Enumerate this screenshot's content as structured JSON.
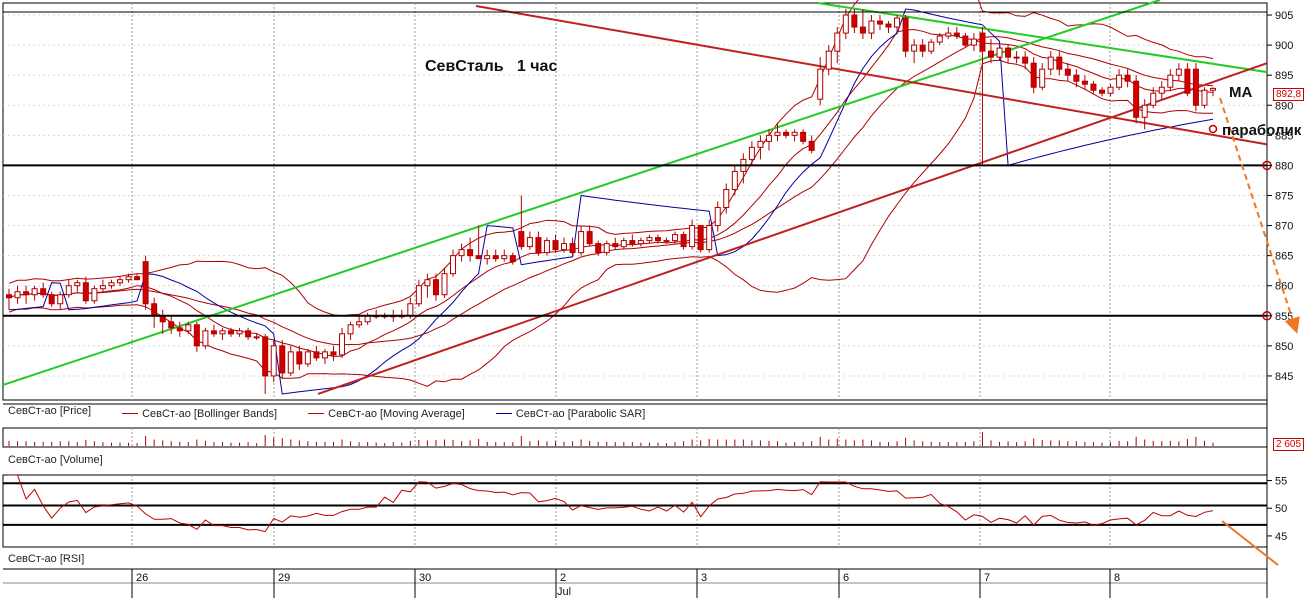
{
  "chart_data": {
    "type": "candlestick",
    "title": "СевСталь   1 час",
    "price_axis": {
      "ylim": [
        841,
        907
      ],
      "ticks": [
        845,
        850,
        855,
        860,
        865,
        870,
        875,
        880,
        885,
        890,
        895,
        900,
        905
      ]
    },
    "last_price": "892,8",
    "x_ticks": [
      "26",
      "29",
      "30",
      "2",
      "3",
      "6",
      "7",
      "8"
    ],
    "month_label": "Jul",
    "legend": [
      {
        "label": "СевСт-ао [Price]",
        "color": "#c00000"
      },
      {
        "label": "СевСт-ао [Bollinger Bands]",
        "color": "#c00000"
      },
      {
        "label": "СевСт-ао [Moving Average]",
        "color": "#c00000"
      },
      {
        "label": "СевСт-ао [Parabolic SAR]",
        "color": "#0000a0"
      }
    ],
    "horizontal_levels": [
      880,
      855,
      905.5
    ],
    "annotations": {
      "ma": "МА",
      "parabolic": "параболик"
    },
    "volume_panel": {
      "label": "СевСт-ао [Volume]",
      "last_value": "2 605"
    },
    "rsi_panel": {
      "label": "СевСт-ао [RSI]",
      "ticks": [
        45,
        50,
        55
      ],
      "levels": [
        54.5,
        50.5,
        47
      ]
    },
    "candles": [
      {
        "o": 858.5,
        "h": 859.5,
        "l": 856,
        "c": 858
      },
      {
        "o": 858,
        "h": 860,
        "l": 857,
        "c": 859
      },
      {
        "o": 859,
        "h": 860,
        "l": 857,
        "c": 858.5
      },
      {
        "o": 858.5,
        "h": 860,
        "l": 857.5,
        "c": 859.5
      },
      {
        "o": 859.5,
        "h": 860.5,
        "l": 858,
        "c": 858.5
      },
      {
        "o": 858.5,
        "h": 859,
        "l": 856.5,
        "c": 857
      },
      {
        "o": 857,
        "h": 859,
        "l": 856,
        "c": 858.5
      },
      {
        "o": 858.5,
        "h": 861,
        "l": 858,
        "c": 860
      },
      {
        "o": 860,
        "h": 861,
        "l": 859,
        "c": 860.5
      },
      {
        "o": 860.5,
        "h": 861.5,
        "l": 857,
        "c": 857.5
      },
      {
        "o": 857.5,
        "h": 860,
        "l": 857,
        "c": 859.5
      },
      {
        "o": 859.5,
        "h": 861,
        "l": 859,
        "c": 860
      },
      {
        "o": 860,
        "h": 861,
        "l": 859.5,
        "c": 860.5
      },
      {
        "o": 860.5,
        "h": 861.5,
        "l": 860,
        "c": 861
      },
      {
        "o": 861,
        "h": 862,
        "l": 860.5,
        "c": 861.5
      },
      {
        "o": 861.5,
        "h": 862,
        "l": 861,
        "c": 861
      },
      {
        "o": 864,
        "h": 865,
        "l": 856,
        "c": 857
      },
      {
        "o": 857,
        "h": 858,
        "l": 853,
        "c": 855
      },
      {
        "o": 855,
        "h": 856,
        "l": 852,
        "c": 854
      },
      {
        "o": 854,
        "h": 855,
        "l": 852,
        "c": 853
      },
      {
        "o": 853,
        "h": 854,
        "l": 851.5,
        "c": 852.5
      },
      {
        "o": 852.5,
        "h": 854,
        "l": 852,
        "c": 853.5
      },
      {
        "o": 853.5,
        "h": 854,
        "l": 849,
        "c": 850
      },
      {
        "o": 850,
        "h": 853,
        "l": 849.5,
        "c": 852.5
      },
      {
        "o": 852.5,
        "h": 853.5,
        "l": 851.5,
        "c": 852
      },
      {
        "o": 852,
        "h": 853,
        "l": 851,
        "c": 852.5
      },
      {
        "o": 852.5,
        "h": 853,
        "l": 851.5,
        "c": 852
      },
      {
        "o": 852,
        "h": 853,
        "l": 851.5,
        "c": 852.5
      },
      {
        "o": 852.5,
        "h": 853,
        "l": 851,
        "c": 851.5
      },
      {
        "o": 851.5,
        "h": 852,
        "l": 851,
        "c": 851.5
      },
      {
        "o": 851.5,
        "h": 852,
        "l": 842,
        "c": 845
      },
      {
        "o": 845,
        "h": 851,
        "l": 844,
        "c": 850
      },
      {
        "o": 850,
        "h": 851,
        "l": 844.5,
        "c": 845.5
      },
      {
        "o": 845.5,
        "h": 850,
        "l": 845,
        "c": 849
      },
      {
        "o": 849,
        "h": 850,
        "l": 846,
        "c": 847
      },
      {
        "o": 847,
        "h": 849.5,
        "l": 846.5,
        "c": 849
      },
      {
        "o": 849,
        "h": 850,
        "l": 847.5,
        "c": 848
      },
      {
        "o": 848,
        "h": 849.5,
        "l": 847,
        "c": 849
      },
      {
        "o": 849,
        "h": 850,
        "l": 847.5,
        "c": 848.5
      },
      {
        "o": 848.5,
        "h": 853,
        "l": 848,
        "c": 852
      },
      {
        "o": 852,
        "h": 854,
        "l": 851,
        "c": 853.5
      },
      {
        "o": 853.5,
        "h": 855,
        "l": 853,
        "c": 854
      },
      {
        "o": 854,
        "h": 855.5,
        "l": 853.5,
        "c": 855
      },
      {
        "o": 855,
        "h": 856,
        "l": 854.5,
        "c": 855
      },
      {
        "o": 855,
        "h": 855.5,
        "l": 854.5,
        "c": 855
      },
      {
        "o": 855,
        "h": 856,
        "l": 854,
        "c": 855
      },
      {
        "o": 855,
        "h": 856,
        "l": 854.5,
        "c": 855
      },
      {
        "o": 855,
        "h": 858,
        "l": 854.5,
        "c": 857
      },
      {
        "o": 857,
        "h": 861,
        "l": 856.5,
        "c": 860
      },
      {
        "o": 860,
        "h": 862,
        "l": 858,
        "c": 861
      },
      {
        "o": 861,
        "h": 862,
        "l": 857.5,
        "c": 858.5
      },
      {
        "o": 858.5,
        "h": 863,
        "l": 858,
        "c": 862
      },
      {
        "o": 862,
        "h": 866,
        "l": 861.5,
        "c": 865
      },
      {
        "o": 865,
        "h": 867,
        "l": 864,
        "c": 866
      },
      {
        "o": 866,
        "h": 868,
        "l": 864,
        "c": 865
      },
      {
        "o": 865,
        "h": 870,
        "l": 864.5,
        "c": 864.5
      },
      {
        "o": 864.5,
        "h": 866,
        "l": 863.5,
        "c": 865
      },
      {
        "o": 865,
        "h": 866,
        "l": 864,
        "c": 864.5
      },
      {
        "o": 864.5,
        "h": 866,
        "l": 864,
        "c": 865
      },
      {
        "o": 865,
        "h": 865.5,
        "l": 863.5,
        "c": 864
      },
      {
        "o": 869,
        "h": 875,
        "l": 866,
        "c": 866.5
      },
      {
        "o": 866.5,
        "h": 869,
        "l": 866,
        "c": 868
      },
      {
        "o": 868,
        "h": 869,
        "l": 865,
        "c": 865.5
      },
      {
        "o": 865.5,
        "h": 868,
        "l": 865,
        "c": 867.5
      },
      {
        "o": 867.5,
        "h": 868.5,
        "l": 865.5,
        "c": 866
      },
      {
        "o": 866,
        "h": 868,
        "l": 865.5,
        "c": 867
      },
      {
        "o": 867,
        "h": 868,
        "l": 865,
        "c": 865.5
      },
      {
        "o": 865.5,
        "h": 870,
        "l": 865,
        "c": 869
      },
      {
        "o": 869,
        "h": 870,
        "l": 866.5,
        "c": 867
      },
      {
        "o": 867,
        "h": 867.5,
        "l": 865,
        "c": 865.5
      },
      {
        "o": 865.5,
        "h": 867.5,
        "l": 865,
        "c": 867
      },
      {
        "o": 867,
        "h": 868,
        "l": 866,
        "c": 866.5
      },
      {
        "o": 866.5,
        "h": 868,
        "l": 866,
        "c": 867.5
      },
      {
        "o": 867.5,
        "h": 868.5,
        "l": 866.5,
        "c": 867
      },
      {
        "o": 867,
        "h": 868,
        "l": 866.5,
        "c": 867.5
      },
      {
        "o": 867.5,
        "h": 868.5,
        "l": 867,
        "c": 868
      },
      {
        "o": 868,
        "h": 868.5,
        "l": 867,
        "c": 867.5
      },
      {
        "o": 867.5,
        "h": 868,
        "l": 867,
        "c": 867.5
      },
      {
        "o": 867.5,
        "h": 869,
        "l": 867,
        "c": 868.5
      },
      {
        "o": 868.5,
        "h": 869,
        "l": 866,
        "c": 866.5
      },
      {
        "o": 866.5,
        "h": 871,
        "l": 866,
        "c": 870
      },
      {
        "o": 870,
        "h": 869.5,
        "l": 865.5,
        "c": 866
      },
      {
        "o": 866,
        "h": 871,
        "l": 865.5,
        "c": 870
      },
      {
        "o": 870,
        "h": 874,
        "l": 869,
        "c": 873
      },
      {
        "o": 873,
        "h": 877,
        "l": 872,
        "c": 876
      },
      {
        "o": 876,
        "h": 880,
        "l": 875,
        "c": 879
      },
      {
        "o": 879,
        "h": 882,
        "l": 877,
        "c": 881
      },
      {
        "o": 881,
        "h": 884,
        "l": 880,
        "c": 883
      },
      {
        "o": 883,
        "h": 885,
        "l": 881,
        "c": 884
      },
      {
        "o": 884,
        "h": 886,
        "l": 882.5,
        "c": 885
      },
      {
        "o": 885,
        "h": 887,
        "l": 884,
        "c": 885.5
      },
      {
        "o": 885.5,
        "h": 886,
        "l": 884.5,
        "c": 885
      },
      {
        "o": 885,
        "h": 886,
        "l": 884,
        "c": 885.5
      },
      {
        "o": 885.5,
        "h": 886,
        "l": 883.5,
        "c": 884
      },
      {
        "o": 884,
        "h": 885,
        "l": 882,
        "c": 882.5
      },
      {
        "o": 891,
        "h": 898,
        "l": 890,
        "c": 896
      },
      {
        "o": 896,
        "h": 900,
        "l": 895,
        "c": 899
      },
      {
        "o": 899,
        "h": 903,
        "l": 897,
        "c": 902
      },
      {
        "o": 902,
        "h": 906,
        "l": 901,
        "c": 905
      },
      {
        "o": 905,
        "h": 906,
        "l": 902,
        "c": 903
      },
      {
        "o": 903,
        "h": 906,
        "l": 901,
        "c": 902
      },
      {
        "o": 902,
        "h": 905,
        "l": 901,
        "c": 904
      },
      {
        "o": 904,
        "h": 905,
        "l": 902.5,
        "c": 903.5
      },
      {
        "o": 903.5,
        "h": 904,
        "l": 902,
        "c": 903
      },
      {
        "o": 903,
        "h": 905,
        "l": 902,
        "c": 904.5
      },
      {
        "o": 904.5,
        "h": 905,
        "l": 898,
        "c": 899
      },
      {
        "o": 899,
        "h": 901,
        "l": 897,
        "c": 900
      },
      {
        "o": 900,
        "h": 901,
        "l": 898,
        "c": 899
      },
      {
        "o": 899,
        "h": 901,
        "l": 898.5,
        "c": 900.5
      },
      {
        "o": 900.5,
        "h": 902,
        "l": 900,
        "c": 901.5
      },
      {
        "o": 901.5,
        "h": 903,
        "l": 901,
        "c": 902
      },
      {
        "o": 902,
        "h": 903,
        "l": 901,
        "c": 901.5
      },
      {
        "o": 901.5,
        "h": 902,
        "l": 899.5,
        "c": 900
      },
      {
        "o": 900,
        "h": 902,
        "l": 899,
        "c": 901
      },
      {
        "o": 902,
        "h": 903,
        "l": 880,
        "c": 899
      },
      {
        "o": 899,
        "h": 901,
        "l": 897,
        "c": 898
      },
      {
        "o": 898,
        "h": 900,
        "l": 897.5,
        "c": 899.5
      },
      {
        "o": 899.5,
        "h": 900,
        "l": 897,
        "c": 898
      },
      {
        "o": 898,
        "h": 899,
        "l": 897,
        "c": 898
      },
      {
        "o": 898,
        "h": 899,
        "l": 896,
        "c": 897
      },
      {
        "o": 897,
        "h": 898,
        "l": 892,
        "c": 893
      },
      {
        "o": 893,
        "h": 897,
        "l": 892.5,
        "c": 896
      },
      {
        "o": 896,
        "h": 899,
        "l": 895,
        "c": 898
      },
      {
        "o": 898,
        "h": 899,
        "l": 895,
        "c": 896
      },
      {
        "o": 896,
        "h": 897,
        "l": 894,
        "c": 895
      },
      {
        "o": 895,
        "h": 896,
        "l": 893,
        "c": 894
      },
      {
        "o": 894,
        "h": 895,
        "l": 892.5,
        "c": 893.5
      },
      {
        "o": 893.5,
        "h": 894,
        "l": 892,
        "c": 892.5
      },
      {
        "o": 892.5,
        "h": 893,
        "l": 891.5,
        "c": 892
      },
      {
        "o": 892,
        "h": 893.5,
        "l": 891.5,
        "c": 893
      },
      {
        "o": 893,
        "h": 896,
        "l": 892.5,
        "c": 895
      },
      {
        "o": 895,
        "h": 896,
        "l": 893,
        "c": 894
      },
      {
        "o": 894,
        "h": 895,
        "l": 887,
        "c": 888
      },
      {
        "o": 888,
        "h": 891,
        "l": 886,
        "c": 890
      },
      {
        "o": 890,
        "h": 893,
        "l": 889.5,
        "c": 892
      },
      {
        "o": 892,
        "h": 894,
        "l": 891,
        "c": 893
      },
      {
        "o": 893,
        "h": 896,
        "l": 892.5,
        "c": 895
      },
      {
        "o": 895,
        "h": 897,
        "l": 894,
        "c": 896
      },
      {
        "o": 896,
        "h": 897,
        "l": 891.5,
        "c": 892
      },
      {
        "o": 896,
        "h": 897,
        "l": 889,
        "c": 890
      },
      {
        "o": 890,
        "h": 893,
        "l": 889.5,
        "c": 892.5
      },
      {
        "o": 892.5,
        "h": 893,
        "l": 891.5,
        "c": 892.8
      }
    ]
  }
}
